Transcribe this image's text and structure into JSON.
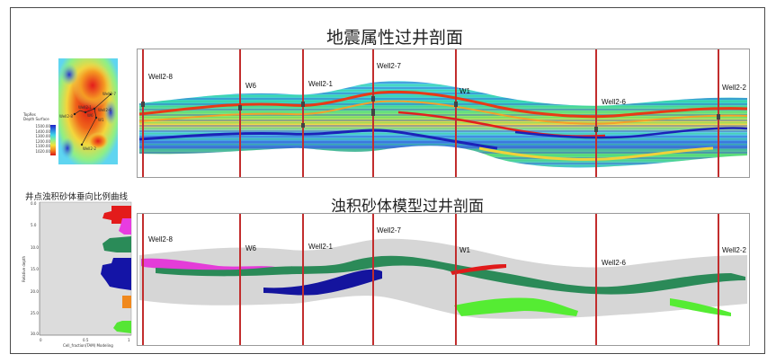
{
  "titles": {
    "seismic": "地震属性过井剖面",
    "model": "浊积砂体模型过井剖面",
    "curve": "井点浊积砂体垂向比例曲线"
  },
  "colors": {
    "pink": "#e23ad9",
    "green_dark": "#2e8a5a",
    "blue_dark": "#1414a0",
    "red": "#e01a1a",
    "green_light": "#55ec33",
    "orange": "#f08a20",
    "gray_body": "#d6d6d6",
    "well_line": "#c22d2d"
  },
  "wells_top": [
    {
      "label": "Well2-8"
    },
    {
      "label": "W6"
    },
    {
      "label": "Well2-1"
    },
    {
      "label": "Well2-7"
    },
    {
      "label": "W1"
    },
    {
      "label": "Well2-6"
    },
    {
      "label": "Well2-2"
    }
  ],
  "wells_bottom": [
    {
      "label": "Well2-8"
    },
    {
      "label": "W6"
    },
    {
      "label": "Well2-1"
    },
    {
      "label": "Well2-7"
    },
    {
      "label": "W1"
    },
    {
      "label": "Well2-6"
    },
    {
      "label": "Well2-2"
    }
  ],
  "map_legend": {
    "title_line1": "TopRes",
    "title_line2": "Depth Surface",
    "ticks": [
      "1500.00",
      "1400.00",
      "1300.00",
      "1200.00",
      "1100.00",
      "1020.00"
    ]
  },
  "curve_panel": {
    "y_ticks": [
      "0.0",
      "5.0",
      "10.0",
      "15.0",
      "20.0",
      "25.0",
      "30.0"
    ],
    "x_ticks": [
      "0",
      "0.5",
      "1"
    ],
    "y_label": "Relative depth",
    "x_label": "Cell_fraction(TAM) Modeling"
  },
  "map_well_labels": [
    "Well2-8",
    "Well2-1",
    "W6",
    "Well2-6",
    "Well2-7",
    "W1",
    "Well2-2"
  ],
  "icons": [
    "map-thumbnail",
    "color-legend"
  ]
}
